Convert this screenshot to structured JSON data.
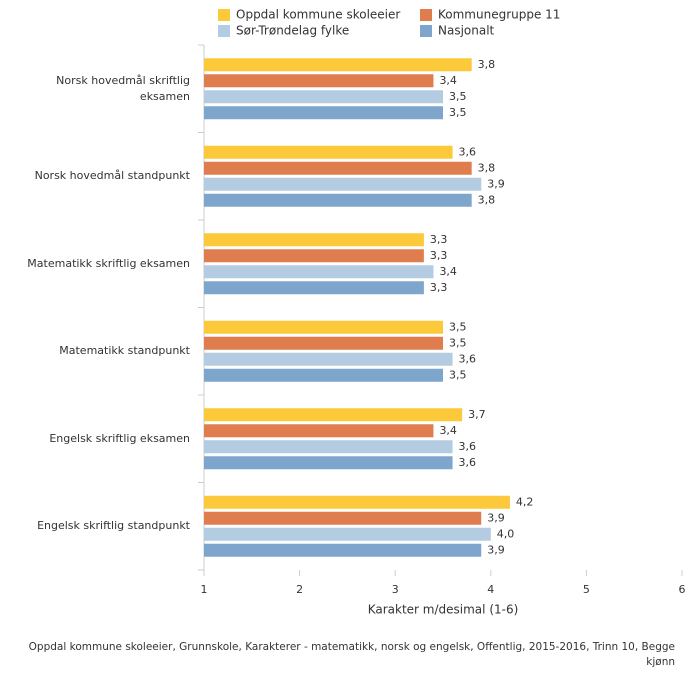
{
  "chart_data": {
    "type": "bar",
    "orientation": "horizontal",
    "categories": [
      "Norsk hovedmål skriftlig eksamen",
      "Norsk hovedmål standpunkt",
      "Matematikk skriftlig eksamen",
      "Matematikk standpunkt",
      "Engelsk skriftlig eksamen",
      "Engelsk skriftlig standpunkt"
    ],
    "series": [
      {
        "name": "Oppdal kommune skoleeier",
        "color": "#fcc93a",
        "values": [
          3.8,
          3.6,
          3.3,
          3.5,
          3.7,
          4.2
        ],
        "value_labels": [
          "3,8",
          "3,6",
          "3,3",
          "3,5",
          "3,7",
          "4,2"
        ]
      },
      {
        "name": "Kommunegruppe 11",
        "color": "#e07d4f",
        "values": [
          3.4,
          3.8,
          3.3,
          3.5,
          3.4,
          3.9
        ],
        "value_labels": [
          "3,4",
          "3,8",
          "3,3",
          "3,5",
          "3,4",
          "3,9"
        ]
      },
      {
        "name": "Sør-Trøndelag fylke",
        "color": "#b4cce2",
        "values": [
          3.5,
          3.9,
          3.4,
          3.6,
          3.6,
          4.0
        ],
        "value_labels": [
          "3,5",
          "3,9",
          "3,4",
          "3,6",
          "3,6",
          "4,0"
        ]
      },
      {
        "name": "Nasjonalt",
        "color": "#7ea5cb",
        "values": [
          3.5,
          3.8,
          3.3,
          3.5,
          3.6,
          3.9
        ],
        "value_labels": [
          "3,5",
          "3,8",
          "3,3",
          "3,5",
          "3,6",
          "3,9"
        ]
      }
    ],
    "xlim": [
      1,
      6
    ],
    "xticks": [
      1,
      2,
      3,
      4,
      5,
      6
    ],
    "x_label": "Karakter m/desimal (1-6)",
    "footnote": "Oppdal kommune skoleeier, Grunnskole, Karakterer - matematikk, norsk og engelsk, Offentlig, 2015-2016, Trinn 10, Begge kjønn"
  }
}
